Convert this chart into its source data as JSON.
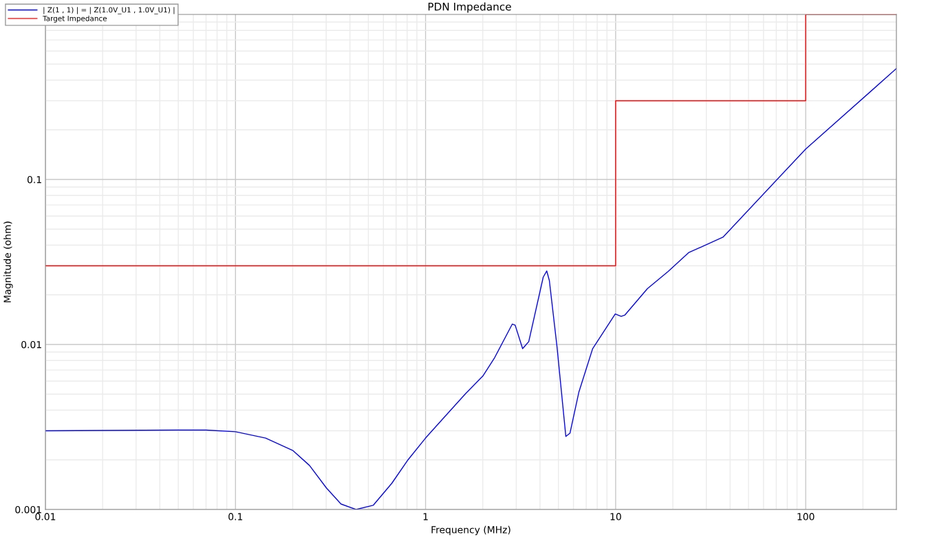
{
  "chart_data": {
    "type": "line",
    "title": "PDN Impedance",
    "xlabel": "Frequency (MHz)",
    "ylabel": "Magnitude (ohm)",
    "log": "xy",
    "xlim": [
      0.01,
      300
    ],
    "ylim": [
      0.001,
      1
    ],
    "xticks": [
      0.01,
      0.1,
      1,
      10,
      100
    ],
    "yticks": [
      0.001,
      0.01,
      0.1
    ],
    "grid": true,
    "legend": "top left",
    "series": [
      {
        "name": "| Z(1 , 1) | = | Z(1.0V_U1 , 1.0V_U1) |",
        "color": "#0000ff",
        "x": [
          0.01,
          0.05,
          0.07,
          0.1,
          0.144,
          0.2,
          0.245,
          0.301,
          0.359,
          0.431,
          0.53,
          0.664,
          0.803,
          1.0,
          1.32,
          1.63,
          2.0,
          2.31,
          2.86,
          2.96,
          3.24,
          3.49,
          4.16,
          4.34,
          4.48,
          4.91,
          5.47,
          5.75,
          6.41,
          7.57,
          9.95,
          10.7,
          11.2,
          14.7,
          18.9,
          24.2,
          36.7,
          100,
          300
        ],
        "values": [
          0.003,
          0.00303,
          0.00303,
          0.00296,
          0.00271,
          0.00228,
          0.00185,
          0.00135,
          0.00108,
          0.001,
          0.00106,
          0.00144,
          0.00198,
          0.00271,
          0.00387,
          0.00506,
          0.00643,
          0.00833,
          0.0133,
          0.0131,
          0.00944,
          0.0104,
          0.0256,
          0.0279,
          0.0244,
          0.0098,
          0.00277,
          0.0029,
          0.00516,
          0.00944,
          0.0153,
          0.0148,
          0.0151,
          0.0218,
          0.0277,
          0.036,
          0.0447,
          0.153,
          0.47
        ]
      },
      {
        "name": "Target Impedance",
        "color": "#ff0000",
        "type": "step",
        "x": [
          0.01,
          10,
          100,
          300
        ],
        "values": [
          0.03,
          0.3,
          1,
          1
        ]
      }
    ]
  }
}
